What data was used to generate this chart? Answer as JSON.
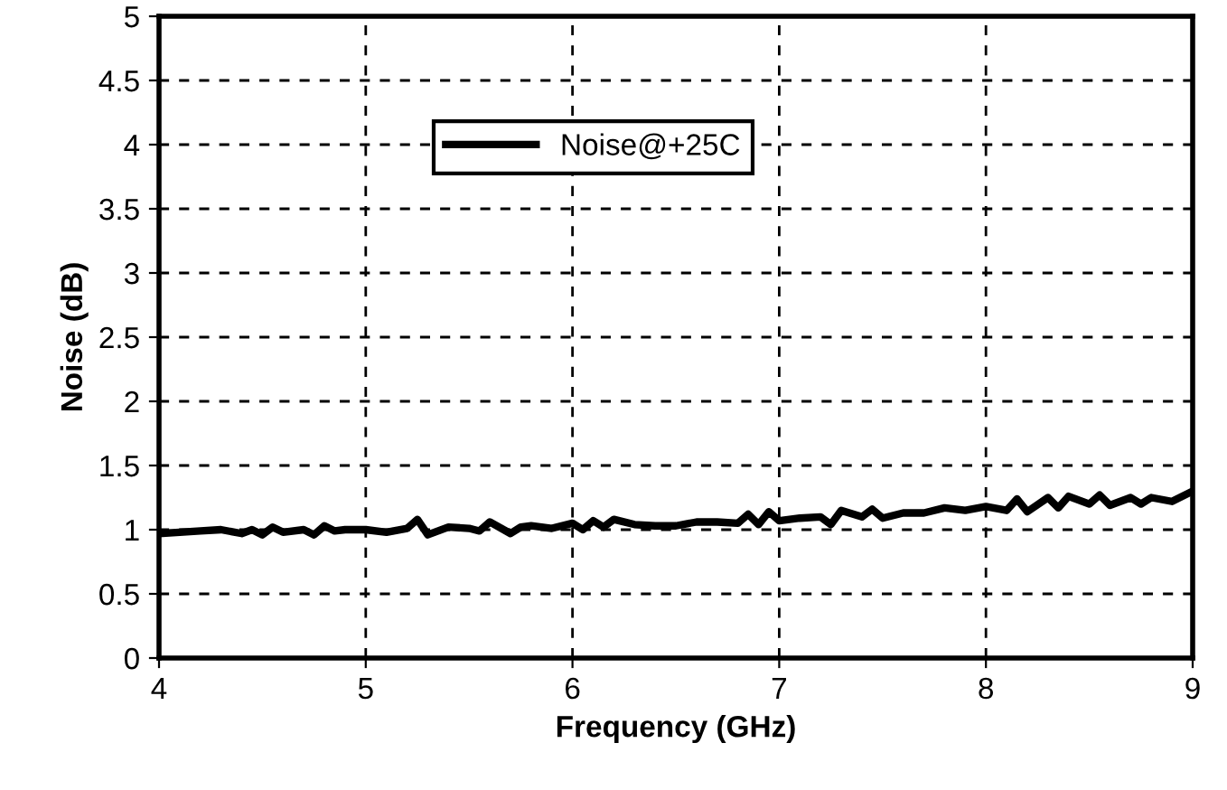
{
  "chart_data": {
    "type": "line",
    "xlabel": "Frequency (GHz)",
    "ylabel": "Noise (dB)",
    "xlim": [
      4,
      9
    ],
    "ylim": [
      0,
      5
    ],
    "xticks": [
      4,
      5,
      6,
      7,
      8,
      9
    ],
    "yticks": [
      0,
      0.5,
      1,
      1.5,
      2,
      2.5,
      3,
      3.5,
      4,
      4.5,
      5
    ],
    "grid": true,
    "legend": "top center",
    "line_style": "solid",
    "marker": "none",
    "series": [
      {
        "name": "Noise@+25C",
        "color": "#000000",
        "x": [
          4.0,
          4.1,
          4.2,
          4.3,
          4.4,
          4.45,
          4.5,
          4.55,
          4.6,
          4.7,
          4.75,
          4.8,
          4.85,
          4.9,
          5.0,
          5.1,
          5.2,
          5.25,
          5.3,
          5.4,
          5.5,
          5.55,
          5.6,
          5.7,
          5.75,
          5.8,
          5.9,
          6.0,
          6.05,
          6.1,
          6.15,
          6.2,
          6.3,
          6.4,
          6.5,
          6.6,
          6.7,
          6.8,
          6.85,
          6.9,
          6.95,
          7.0,
          7.1,
          7.2,
          7.25,
          7.3,
          7.4,
          7.45,
          7.5,
          7.6,
          7.7,
          7.8,
          7.9,
          8.0,
          8.1,
          8.15,
          8.2,
          8.3,
          8.35,
          8.4,
          8.5,
          8.55,
          8.6,
          8.7,
          8.75,
          8.8,
          8.9,
          9.0
        ],
        "values": [
          0.97,
          0.98,
          0.99,
          1.0,
          0.97,
          1.0,
          0.96,
          1.02,
          0.98,
          1.0,
          0.96,
          1.03,
          0.99,
          1.0,
          1.0,
          0.98,
          1.01,
          1.08,
          0.96,
          1.02,
          1.01,
          0.99,
          1.06,
          0.97,
          1.02,
          1.03,
          1.01,
          1.05,
          1.0,
          1.07,
          1.02,
          1.08,
          1.04,
          1.03,
          1.03,
          1.06,
          1.06,
          1.05,
          1.12,
          1.04,
          1.14,
          1.07,
          1.09,
          1.1,
          1.04,
          1.15,
          1.1,
          1.16,
          1.09,
          1.13,
          1.13,
          1.17,
          1.15,
          1.18,
          1.15,
          1.24,
          1.14,
          1.25,
          1.17,
          1.26,
          1.2,
          1.27,
          1.19,
          1.25,
          1.2,
          1.25,
          1.22,
          1.3
        ]
      }
    ]
  }
}
